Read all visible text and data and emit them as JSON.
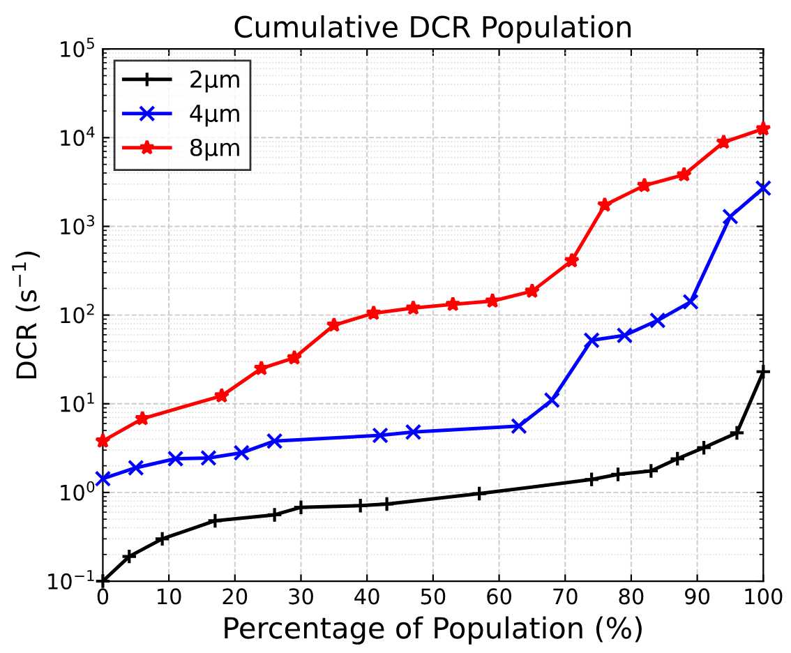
{
  "chart_data": {
    "type": "line",
    "title": "Cumulative DCR Population",
    "xlabel": "Percentage of Population (%)",
    "ylabel": "DCR (s$^{−1}$)",
    "log": "y",
    "xlim": [
      0,
      100
    ],
    "xticks": [
      0,
      10,
      20,
      30,
      40,
      50,
      60,
      70,
      80,
      90,
      100
    ],
    "ylim": [
      0.1,
      100000
    ],
    "yticks": [
      {
        "value": 0.1,
        "label": "10$^{−1}$"
      },
      {
        "value": 1,
        "label": "10$^{0}$"
      },
      {
        "value": 10,
        "label": "10$^{1}$"
      },
      {
        "value": 100,
        "label": "10$^{2}$"
      },
      {
        "value": 1000,
        "label": "10$^{3}$"
      },
      {
        "value": 10000,
        "label": "10$^{4}$"
      },
      {
        "value": 100000,
        "label": "10$^{5}$"
      }
    ],
    "grid": true,
    "legend": "top left",
    "line_style": "solid",
    "series": [
      {
        "name": "2μm",
        "color": "#000000",
        "marker": "plus",
        "x": [
          0,
          4,
          9,
          17,
          26,
          30,
          39,
          43,
          57,
          74,
          78,
          83,
          87,
          91,
          96,
          100
        ],
        "values": [
          0.1,
          0.19,
          0.3,
          0.48,
          0.56,
          0.68,
          0.71,
          0.74,
          0.97,
          1.4,
          1.6,
          1.75,
          2.4,
          3.2,
          4.7,
          23
        ]
      },
      {
        "name": "4μm",
        "color": "#0000ff",
        "marker": "cross",
        "x": [
          0,
          5,
          11,
          16,
          21,
          26,
          42,
          47,
          63,
          68,
          74,
          79,
          84,
          89,
          95,
          100
        ],
        "values": [
          1.43,
          1.9,
          2.4,
          2.45,
          2.8,
          3.8,
          4.4,
          4.8,
          5.6,
          11,
          52,
          59,
          87,
          141,
          1290,
          2700
        ]
      },
      {
        "name": "8μm",
        "color": "#ff0000",
        "marker": "star",
        "x": [
          0,
          6,
          18,
          24,
          29,
          35,
          41,
          47,
          53,
          59,
          65,
          71,
          76,
          82,
          88,
          94,
          100
        ],
        "values": [
          3.8,
          6.8,
          12.3,
          25,
          33,
          77,
          105,
          120,
          132,
          144,
          186,
          410,
          1740,
          2890,
          3820,
          8900,
          12600
        ]
      }
    ]
  }
}
